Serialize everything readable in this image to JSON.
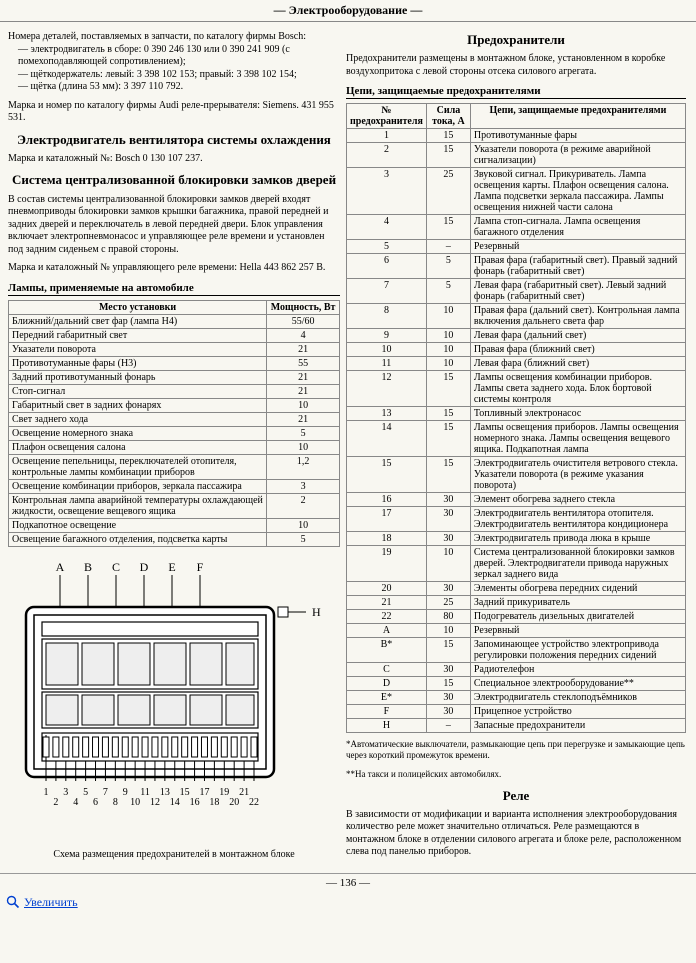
{
  "header": "— Электрооборудование —",
  "left": {
    "intro1": "Номера деталей, поставляемых в запчасти, по каталогу фирмы Bosch:",
    "intro_items": [
      "— электродвигатель в сборе: 0 390 246 130 или 0 390 241 909 (с помехоподавляющей сопротивлением);",
      "— щёткодержатель: левый: 3 398 102 153; правый: 3 398 102 154;",
      "— щётка (длина 53 мм): 3 397 110 792."
    ],
    "intro2": "Марка и номер по каталогу фирмы Audi реле-прерывателя: Siemens. 431 955 531.",
    "h_vent_title": "Электродвигатель вентилятора системы охлаждения",
    "h_vent_text": "Марка и каталожный №: Bosch 0 130 107 237.",
    "h_lock_title": "Система централизованной блокировки замков дверей",
    "h_lock_text": "В состав системы централизованной блокировки замков дверей входят пневмоприводы блокировки замков крышки багажника, правой передней и задних дверей и переключатель в левой передней двери. Блок управления включает электропневмонасос и управляющее реле времени и установлен под задним сиденьем с правой стороны.",
    "h_lock_text2": "Марка и каталожный № управляющего реле времени: Hella 443 862 257 B.",
    "lamps_title": "Лампы, применяемые на автомобиле",
    "lamps_headers": {
      "c1": "Место установки",
      "c2": "Мощность, Вт"
    },
    "lamps_rows": [
      [
        "Ближний/дальний свет фар (лампа Н4)",
        "55/60"
      ],
      [
        "Передний габаритный свет",
        "4"
      ],
      [
        "Указатели поворота",
        "21"
      ],
      [
        "Противотуманные фары (Н3)",
        "55"
      ],
      [
        "Задний противотуманный фонарь",
        "21"
      ],
      [
        "Стоп-сигнал",
        "21"
      ],
      [
        "Габаритный свет в задних фонарях",
        "10"
      ],
      [
        "Свет заднего хода",
        "21"
      ],
      [
        "Освещение номерного знака",
        "5"
      ],
      [
        "Плафон освещения салона",
        "10"
      ],
      [
        "Освещение пепельницы, переключателей отопителя, контрольные лампы комбинации приборов",
        "1,2"
      ],
      [
        "Освещение комбинации приборов, зеркала пассажира",
        "3"
      ],
      [
        "Контрольная лампа аварийной температуры охлаждающей жидкости, освещение вещевого ящика",
        "2"
      ],
      [
        "Подкапотное освещение",
        "10"
      ],
      [
        "Освещение багажного отделения, подсветка карты",
        "5"
      ]
    ],
    "diagram_caption": "Схема размещения предохранителей в монтажном блоке",
    "diagram_top_labels": [
      "A",
      "B",
      "C",
      "D",
      "E",
      "F"
    ],
    "diagram_bottom_labels": [
      "1",
      "2",
      "3",
      "4",
      "5",
      "6",
      "7",
      "8",
      "9",
      "10",
      "11",
      "12",
      "13",
      "14",
      "15",
      "16",
      "17",
      "18",
      "19",
      "20",
      "21",
      "22"
    ]
  },
  "right": {
    "fuses_title": "Предохранители",
    "fuses_intro": "Предохранители размещены в монтажном блоке, установленном в коробке воздухопритока с левой стороны отсека силового агрегата.",
    "fuses_subtitle": "Цепи, защищаемые предохранителями",
    "fuses_headers": {
      "c1": "№ предохранителя",
      "c2": "Сила тока, А",
      "c3": "Цепи, защищаемые предохранителями"
    },
    "fuses_rows": [
      [
        "1",
        "15",
        "Противотуманные фары"
      ],
      [
        "2",
        "15",
        "Указатели поворота (в режиме аварийной сигнализации)"
      ],
      [
        "3",
        "25",
        "Звуковой сигнал. Прикуриватель. Лампа освещения карты. Плафон освещения салона. Лампа подсветки зеркала пассажира. Лампы освещения нижней части салона"
      ],
      [
        "4",
        "15",
        "Лампа стоп-сигнала. Лампа освещения багажного отделения"
      ],
      [
        "5",
        "–",
        "Резервный"
      ],
      [
        "6",
        "5",
        "Правая фара (габаритный свет). Правый задний фонарь (габаритный свет)"
      ],
      [
        "7",
        "5",
        "Левая фара (габаритный свет). Левый задний фонарь (габаритный свет)"
      ],
      [
        "8",
        "10",
        "Правая фара (дальний свет). Контрольная лампа включения дальнего света фар"
      ],
      [
        "9",
        "10",
        "Левая фара (дальний свет)"
      ],
      [
        "10",
        "10",
        "Правая фара (ближний свет)"
      ],
      [
        "11",
        "10",
        "Левая фара (ближний свет)"
      ],
      [
        "12",
        "15",
        "Лампы освещения комбинации приборов. Лампы света заднего хода. Блок бортовой системы контроля"
      ],
      [
        "13",
        "15",
        "Топливный электронасос"
      ],
      [
        "14",
        "15",
        "Лампы освещения приборов. Лампы освещения номерного знака. Лампы освещения вещевого ящика. Подкапотная лампа"
      ],
      [
        "15",
        "15",
        "Электродвигатель очистителя ветрового стекла. Указатели поворота (в режиме указания поворота)"
      ],
      [
        "16",
        "30",
        "Элемент обогрева заднего стекла"
      ],
      [
        "17",
        "30",
        "Электродвигатель вентилятора отопителя. Электродвигатель вентилятора кондиционера"
      ],
      [
        "18",
        "30",
        "Электродвигатель привода люка в крыше"
      ],
      [
        "19",
        "10",
        "Система централизованной блокировки замков дверей. Электродвигатели привода наружных зеркал заднего вида"
      ],
      [
        "20",
        "30",
        "Элементы обогрева передних сидений"
      ],
      [
        "21",
        "25",
        "Задний прикуриватель"
      ],
      [
        "22",
        "80",
        "Подогреватель дизельных двигателей"
      ],
      [
        "A",
        "10",
        "Резервный"
      ],
      [
        "B*",
        "15",
        "Запоминающее устройство электропривода регулировки положения передних сидений"
      ],
      [
        "C",
        "30",
        "Радиотелефон"
      ],
      [
        "D",
        "15",
        "Специальное электрооборудование**"
      ],
      [
        "E*",
        "30",
        "Электродвигатель стеклоподъёмников"
      ],
      [
        "F",
        "30",
        "Прицепное устройство"
      ],
      [
        "H",
        "–",
        "Запасные предохранители"
      ]
    ],
    "footnote1": "*Автоматические выключатели, размыкающие цепь при перегрузке и замыкающие цепь через короткий промежуток времени.",
    "footnote2": "**На такси и полицейских автомобилях.",
    "relay_title": "Реле",
    "relay_text": "В зависимости от модификации и варианта исполнения электрооборудования количество реле может значительно отличаться. Реле размещаются в монтажном блоке в отделении силового агрегата и блоке реле, расположенном слева под панелью приборов."
  },
  "page_num": "— 136 —",
  "magnify_label": "Увеличить",
  "colors": {
    "bg": "#f8f7f1",
    "text": "#000000",
    "border": "#888888",
    "link": "#0040d0"
  }
}
